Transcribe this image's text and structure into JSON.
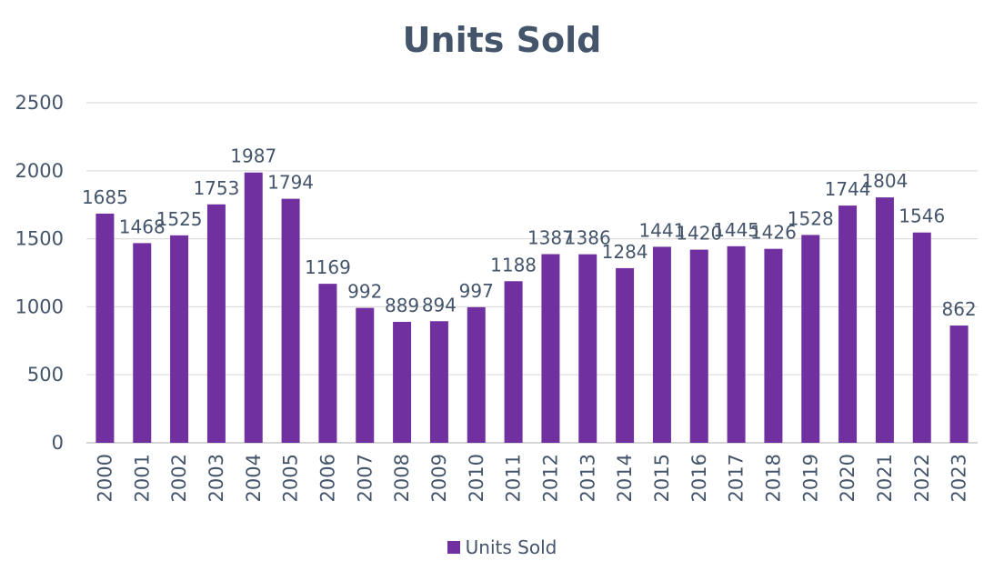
{
  "chart_data": {
    "type": "bar",
    "title": "Units Sold",
    "categories": [
      "2000",
      "2001",
      "2002",
      "2003",
      "2004",
      "2005",
      "2006",
      "2007",
      "2008",
      "2009",
      "2010",
      "2011",
      "2012",
      "2013",
      "2014",
      "2015",
      "2016",
      "2017",
      "2018",
      "2019",
      "2020",
      "2021",
      "2022",
      "2023"
    ],
    "series": [
      {
        "name": "Units Sold",
        "color": "#7030a0",
        "values": [
          1685,
          1468,
          1525,
          1753,
          1987,
          1794,
          1169,
          992,
          889,
          894,
          997,
          1188,
          1387,
          1386,
          1284,
          1441,
          1420,
          1445,
          1426,
          1528,
          1744,
          1804,
          1546,
          862
        ]
      }
    ],
    "ylim": [
      0,
      2500
    ],
    "yticks": [
      0,
      500,
      1000,
      1500,
      2000,
      2500
    ],
    "grid": true,
    "data_labels": true,
    "legend_position": "bottom"
  }
}
